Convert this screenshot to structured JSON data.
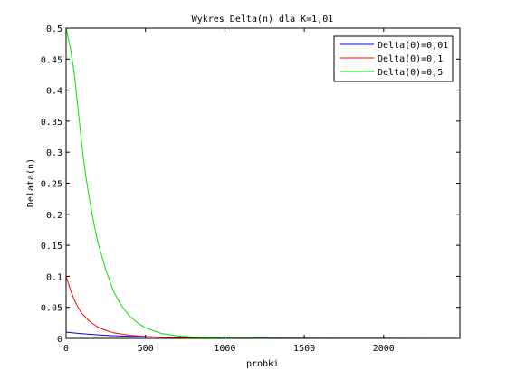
{
  "chart_data": {
    "type": "line",
    "title": "Wykres Delta(n) dla K=1,01",
    "xlabel": "probki",
    "ylabel": "Delata(n)",
    "xlim": [
      0,
      2480
    ],
    "ylim": [
      0,
      0.5
    ],
    "xticks": [
      0,
      500,
      1000,
      1500,
      2000
    ],
    "xtick_labels": [
      "0",
      "500",
      "1000",
      "1500",
      "2000"
    ],
    "yticks": [
      0,
      0.05,
      0.1,
      0.15,
      0.2,
      0.25,
      0.3,
      0.35,
      0.4,
      0.45,
      0.5
    ],
    "ytick_labels": [
      "0",
      "0.05",
      "0.1",
      "0.15",
      "0.2",
      "0.25",
      "0.3",
      "0.35",
      "0.4",
      "0.45",
      "0.5"
    ],
    "grid": false,
    "legend_position": "top-right",
    "series": [
      {
        "name": "Delta(0)=0,01",
        "color": "#0000ff",
        "x": [
          0,
          50,
          100,
          150,
          200,
          250,
          300,
          400,
          500,
          600,
          800,
          1000,
          1500,
          2000,
          2480
        ],
        "y": [
          0.01,
          0.0087,
          0.0076,
          0.0066,
          0.0057,
          0.005,
          0.0043,
          0.0033,
          0.0025,
          0.0019,
          0.0011,
          0.0007,
          0.0002,
          0.0001,
          0.0
        ]
      },
      {
        "name": "Delta(0)=0,1",
        "color": "#ff0000",
        "x": [
          0,
          25,
          50,
          75,
          100,
          150,
          200,
          250,
          300,
          400,
          500,
          600,
          800,
          1000,
          1500,
          2000,
          2480
        ],
        "y": [
          0.1,
          0.08,
          0.063,
          0.05,
          0.04,
          0.027,
          0.018,
          0.013,
          0.009,
          0.005,
          0.003,
          0.002,
          0.001,
          0.0005,
          0.0001,
          0.0,
          0.0
        ]
      },
      {
        "name": "Delta(0)=0,5",
        "color": "#00e000",
        "x": [
          0,
          25,
          50,
          75,
          100,
          125,
          150,
          175,
          200,
          250,
          300,
          350,
          400,
          450,
          500,
          600,
          700,
          800,
          1000,
          1500,
          2000,
          2480
        ],
        "y": [
          0.5,
          0.47,
          0.43,
          0.37,
          0.31,
          0.26,
          0.22,
          0.185,
          0.155,
          0.11,
          0.075,
          0.052,
          0.036,
          0.025,
          0.017,
          0.008,
          0.004,
          0.002,
          0.0008,
          0.0001,
          0.0,
          0.0
        ]
      }
    ]
  }
}
